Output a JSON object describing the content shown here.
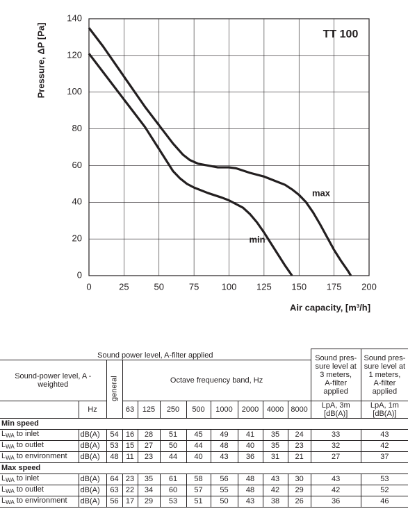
{
  "chart_data": {
    "type": "line",
    "title": "TT 100",
    "xlabel": "Air capacity, [m³/h]",
    "ylabel": "Pressure, ΔP [Pa]",
    "xlim": [
      0,
      200
    ],
    "ylim": [
      0,
      140
    ],
    "xticks": [
      0,
      25,
      50,
      75,
      100,
      125,
      150,
      175,
      200
    ],
    "yticks": [
      0,
      20,
      40,
      60,
      80,
      100,
      120,
      140
    ],
    "grid": true,
    "series": [
      {
        "name": "max",
        "color": "#231f20",
        "x": [
          0,
          10,
          20,
          30,
          40,
          50,
          60,
          67,
          72,
          78,
          85,
          92,
          100,
          105,
          115,
          125,
          135,
          140,
          145,
          150,
          155,
          160,
          165,
          170,
          175,
          180,
          185,
          187
        ],
        "values": [
          135,
          125,
          114,
          103,
          92,
          82,
          72,
          66,
          63,
          61,
          60,
          59,
          59,
          58.5,
          56,
          54,
          51,
          49.5,
          47,
          44,
          40,
          34.5,
          28,
          21,
          14,
          8,
          2.5,
          0
        ]
      },
      {
        "name": "min",
        "color": "#231f20",
        "x": [
          0,
          10,
          20,
          30,
          40,
          50,
          55,
          60,
          65,
          70,
          75,
          85,
          95,
          100,
          110,
          115,
          120,
          125,
          130,
          135,
          140,
          145
        ],
        "values": [
          121,
          111,
          101,
          91,
          81,
          69,
          63,
          57,
          53,
          50,
          48,
          45,
          42.5,
          41,
          37,
          33.5,
          29,
          23.5,
          17.5,
          11.5,
          5.5,
          0
        ]
      }
    ]
  },
  "table": {
    "group_header": "Sound power level, A-filter applied",
    "spl3_header": [
      "Sound pres-",
      "sure level at",
      "3 meters,",
      "A-filter",
      "applied"
    ],
    "spl1_header": [
      "Sound pres-",
      "sure level at",
      "1 meters,",
      "A-filter",
      "applied"
    ],
    "row_header": "Sound-power level, A - weighted",
    "general": "general",
    "band_header": "Octave frequency band, Hz",
    "unit_header": "Hz",
    "bands": [
      63,
      125,
      250,
      500,
      1000,
      2000,
      4000,
      8000
    ],
    "spl3_unit": [
      "LpA, 3m",
      "[dB(A)]"
    ],
    "spl1_unit": [
      "LpA, 1m",
      "[dB(A)]"
    ],
    "sections": [
      {
        "title": "Min speed",
        "rows": [
          {
            "symbol": "L",
            "sub": "WA",
            "label": "to inlet",
            "unit": "dB(A)",
            "general": 54,
            "bands": [
              16,
              28,
              51,
              45,
              49,
              41,
              35,
              24
            ],
            "spl3": 33,
            "spl1": 43
          },
          {
            "symbol": "L",
            "sub": "WA",
            "label": "to outlet",
            "unit": "dB(A)",
            "general": 53,
            "bands": [
              15,
              27,
              50,
              44,
              48,
              40,
              35,
              23
            ],
            "spl3": 32,
            "spl1": 42
          },
          {
            "symbol": "L",
            "sub": "WA",
            "label": "to environment",
            "unit": "dB(A)",
            "general": 48,
            "bands": [
              11,
              23,
              44,
              40,
              43,
              36,
              31,
              21
            ],
            "spl3": 27,
            "spl1": 37
          }
        ]
      },
      {
        "title": "Max speed",
        "rows": [
          {
            "symbol": "L",
            "sub": "WA",
            "label": "to inlet",
            "unit": "dB(A)",
            "general": 64,
            "bands": [
              23,
              35,
              61,
              58,
              56,
              48,
              43,
              30
            ],
            "spl3": 43,
            "spl1": 53
          },
          {
            "symbol": "L",
            "sub": "WA",
            "label": "to outlet",
            "unit": "dB(A)",
            "general": 63,
            "bands": [
              22,
              34,
              60,
              57,
              55,
              48,
              42,
              29
            ],
            "spl3": 42,
            "spl1": 52
          },
          {
            "symbol": "L",
            "sub": "WA",
            "label": "to environment",
            "unit": "dB(A)",
            "general": 56,
            "bands": [
              17,
              29,
              53,
              51,
              50,
              43,
              38,
              26
            ],
            "spl3": 36,
            "spl1": 46
          }
        ]
      }
    ]
  }
}
